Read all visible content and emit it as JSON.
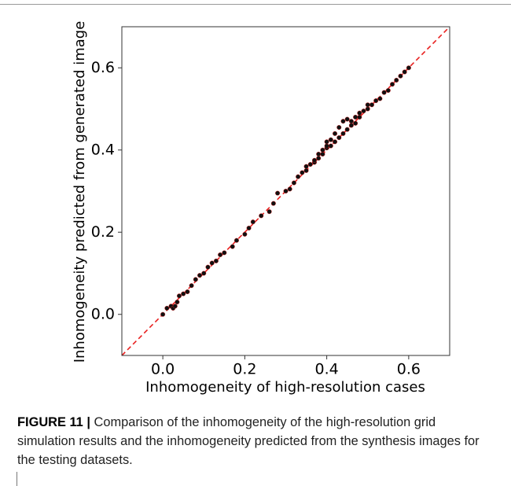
{
  "chart_data": {
    "type": "scatter",
    "xlabel": "Inhomogeneity of high-resolution cases",
    "ylabel": "Inhomogeneity predicted from generated image",
    "xlim": [
      -0.1,
      0.7
    ],
    "ylim": [
      -0.1,
      0.7
    ],
    "xticks": [
      {
        "value": 0,
        "label": "0.0"
      },
      0.2,
      0.4,
      0.6
    ],
    "yticks": [
      {
        "value": 0,
        "label": "0.0"
      },
      0.2,
      0.4,
      0.6
    ],
    "reference_line_color": "#e8201f",
    "series": [
      {
        "color": "#111111",
        "x": [
          0.0,
          0.01,
          0.02,
          0.025,
          0.03,
          0.035,
          0.04,
          0.05,
          0.06,
          0.07,
          0.08,
          0.09,
          0.1,
          0.11,
          0.12,
          0.13,
          0.14,
          0.15,
          0.17,
          0.18,
          0.2,
          0.21,
          0.22,
          0.24,
          0.26,
          0.27,
          0.28,
          0.3,
          0.31,
          0.32,
          0.33,
          0.34,
          0.35,
          0.35,
          0.36,
          0.37,
          0.37,
          0.38,
          0.38,
          0.39,
          0.39,
          0.4,
          0.4,
          0.4,
          0.41,
          0.41,
          0.42,
          0.42,
          0.43,
          0.43,
          0.44,
          0.44,
          0.45,
          0.45,
          0.46,
          0.46,
          0.47,
          0.47,
          0.48,
          0.48,
          0.49,
          0.5,
          0.5,
          0.51,
          0.52,
          0.53,
          0.54,
          0.55,
          0.56,
          0.57,
          0.58,
          0.59,
          0.6
        ],
        "values": [
          0.0,
          0.015,
          0.02,
          0.015,
          0.02,
          0.03,
          0.045,
          0.05,
          0.055,
          0.07,
          0.085,
          0.095,
          0.1,
          0.115,
          0.125,
          0.13,
          0.145,
          0.15,
          0.165,
          0.18,
          0.195,
          0.21,
          0.225,
          0.24,
          0.25,
          0.27,
          0.295,
          0.3,
          0.305,
          0.32,
          0.335,
          0.345,
          0.35,
          0.36,
          0.365,
          0.37,
          0.375,
          0.38,
          0.39,
          0.39,
          0.4,
          0.405,
          0.41,
          0.42,
          0.41,
          0.425,
          0.42,
          0.44,
          0.43,
          0.455,
          0.44,
          0.47,
          0.45,
          0.475,
          0.46,
          0.47,
          0.465,
          0.48,
          0.48,
          0.49,
          0.495,
          0.5,
          0.51,
          0.51,
          0.52,
          0.525,
          0.54,
          0.545,
          0.56,
          0.57,
          0.58,
          0.59,
          0.6
        ]
      }
    ]
  },
  "caption": {
    "label": "FIGURE 11 |",
    "text": "Comparison of the inhomogeneity of the high-resolution grid simulation results and the inhomogeneity predicted from the synthesis images for the testing datasets."
  }
}
